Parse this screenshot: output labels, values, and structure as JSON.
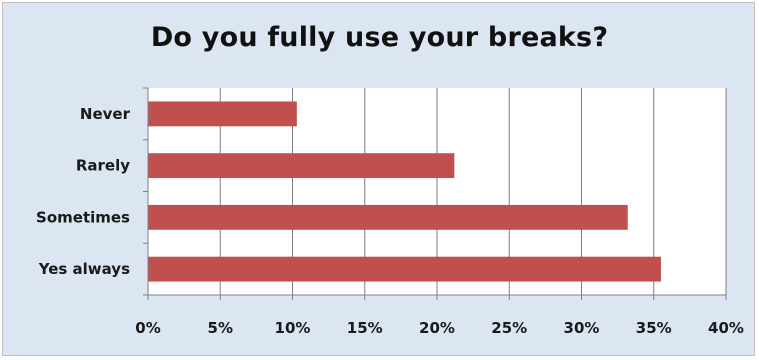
{
  "chart_data": {
    "type": "bar",
    "orientation": "horizontal",
    "title": "Do you fully use your breaks?",
    "categories": [
      "Never",
      "Rarely",
      "Sometimes",
      "Yes always"
    ],
    "values": [
      10.3,
      21.2,
      33.2,
      35.5
    ],
    "xlabel": "",
    "ylabel": "",
    "xlim": [
      0,
      40
    ],
    "x_ticks": [
      "0%",
      "5%",
      "10%",
      "15%",
      "20%",
      "25%",
      "30%",
      "35%",
      "40%"
    ],
    "grid": true,
    "legend": "none",
    "colors": {
      "bar": "#c0504d",
      "background": "#dce6f2",
      "plot_area": "#ffffff",
      "gridline": "#7f7f7f"
    }
  }
}
